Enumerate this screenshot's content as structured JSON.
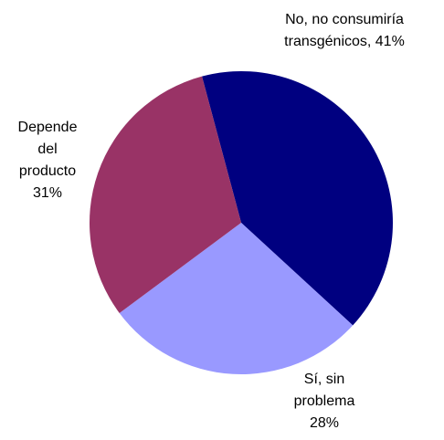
{
  "chart_data": {
    "type": "pie",
    "title": "",
    "start_angle_deg": -15,
    "direction": "clockwise",
    "slices": [
      {
        "label_lines": [
          "No, no consumiría",
          "transgénicos, 41%"
        ],
        "value": 41,
        "color": "#000080"
      },
      {
        "label_lines": [
          "Sí, sin",
          "problema",
          "28%"
        ],
        "value": 28,
        "color": "#9999ff"
      },
      {
        "label_lines": [
          "Depende",
          "del",
          "producto",
          "31%"
        ],
        "value": 31,
        "color": "#993366"
      }
    ],
    "legend": "none"
  }
}
